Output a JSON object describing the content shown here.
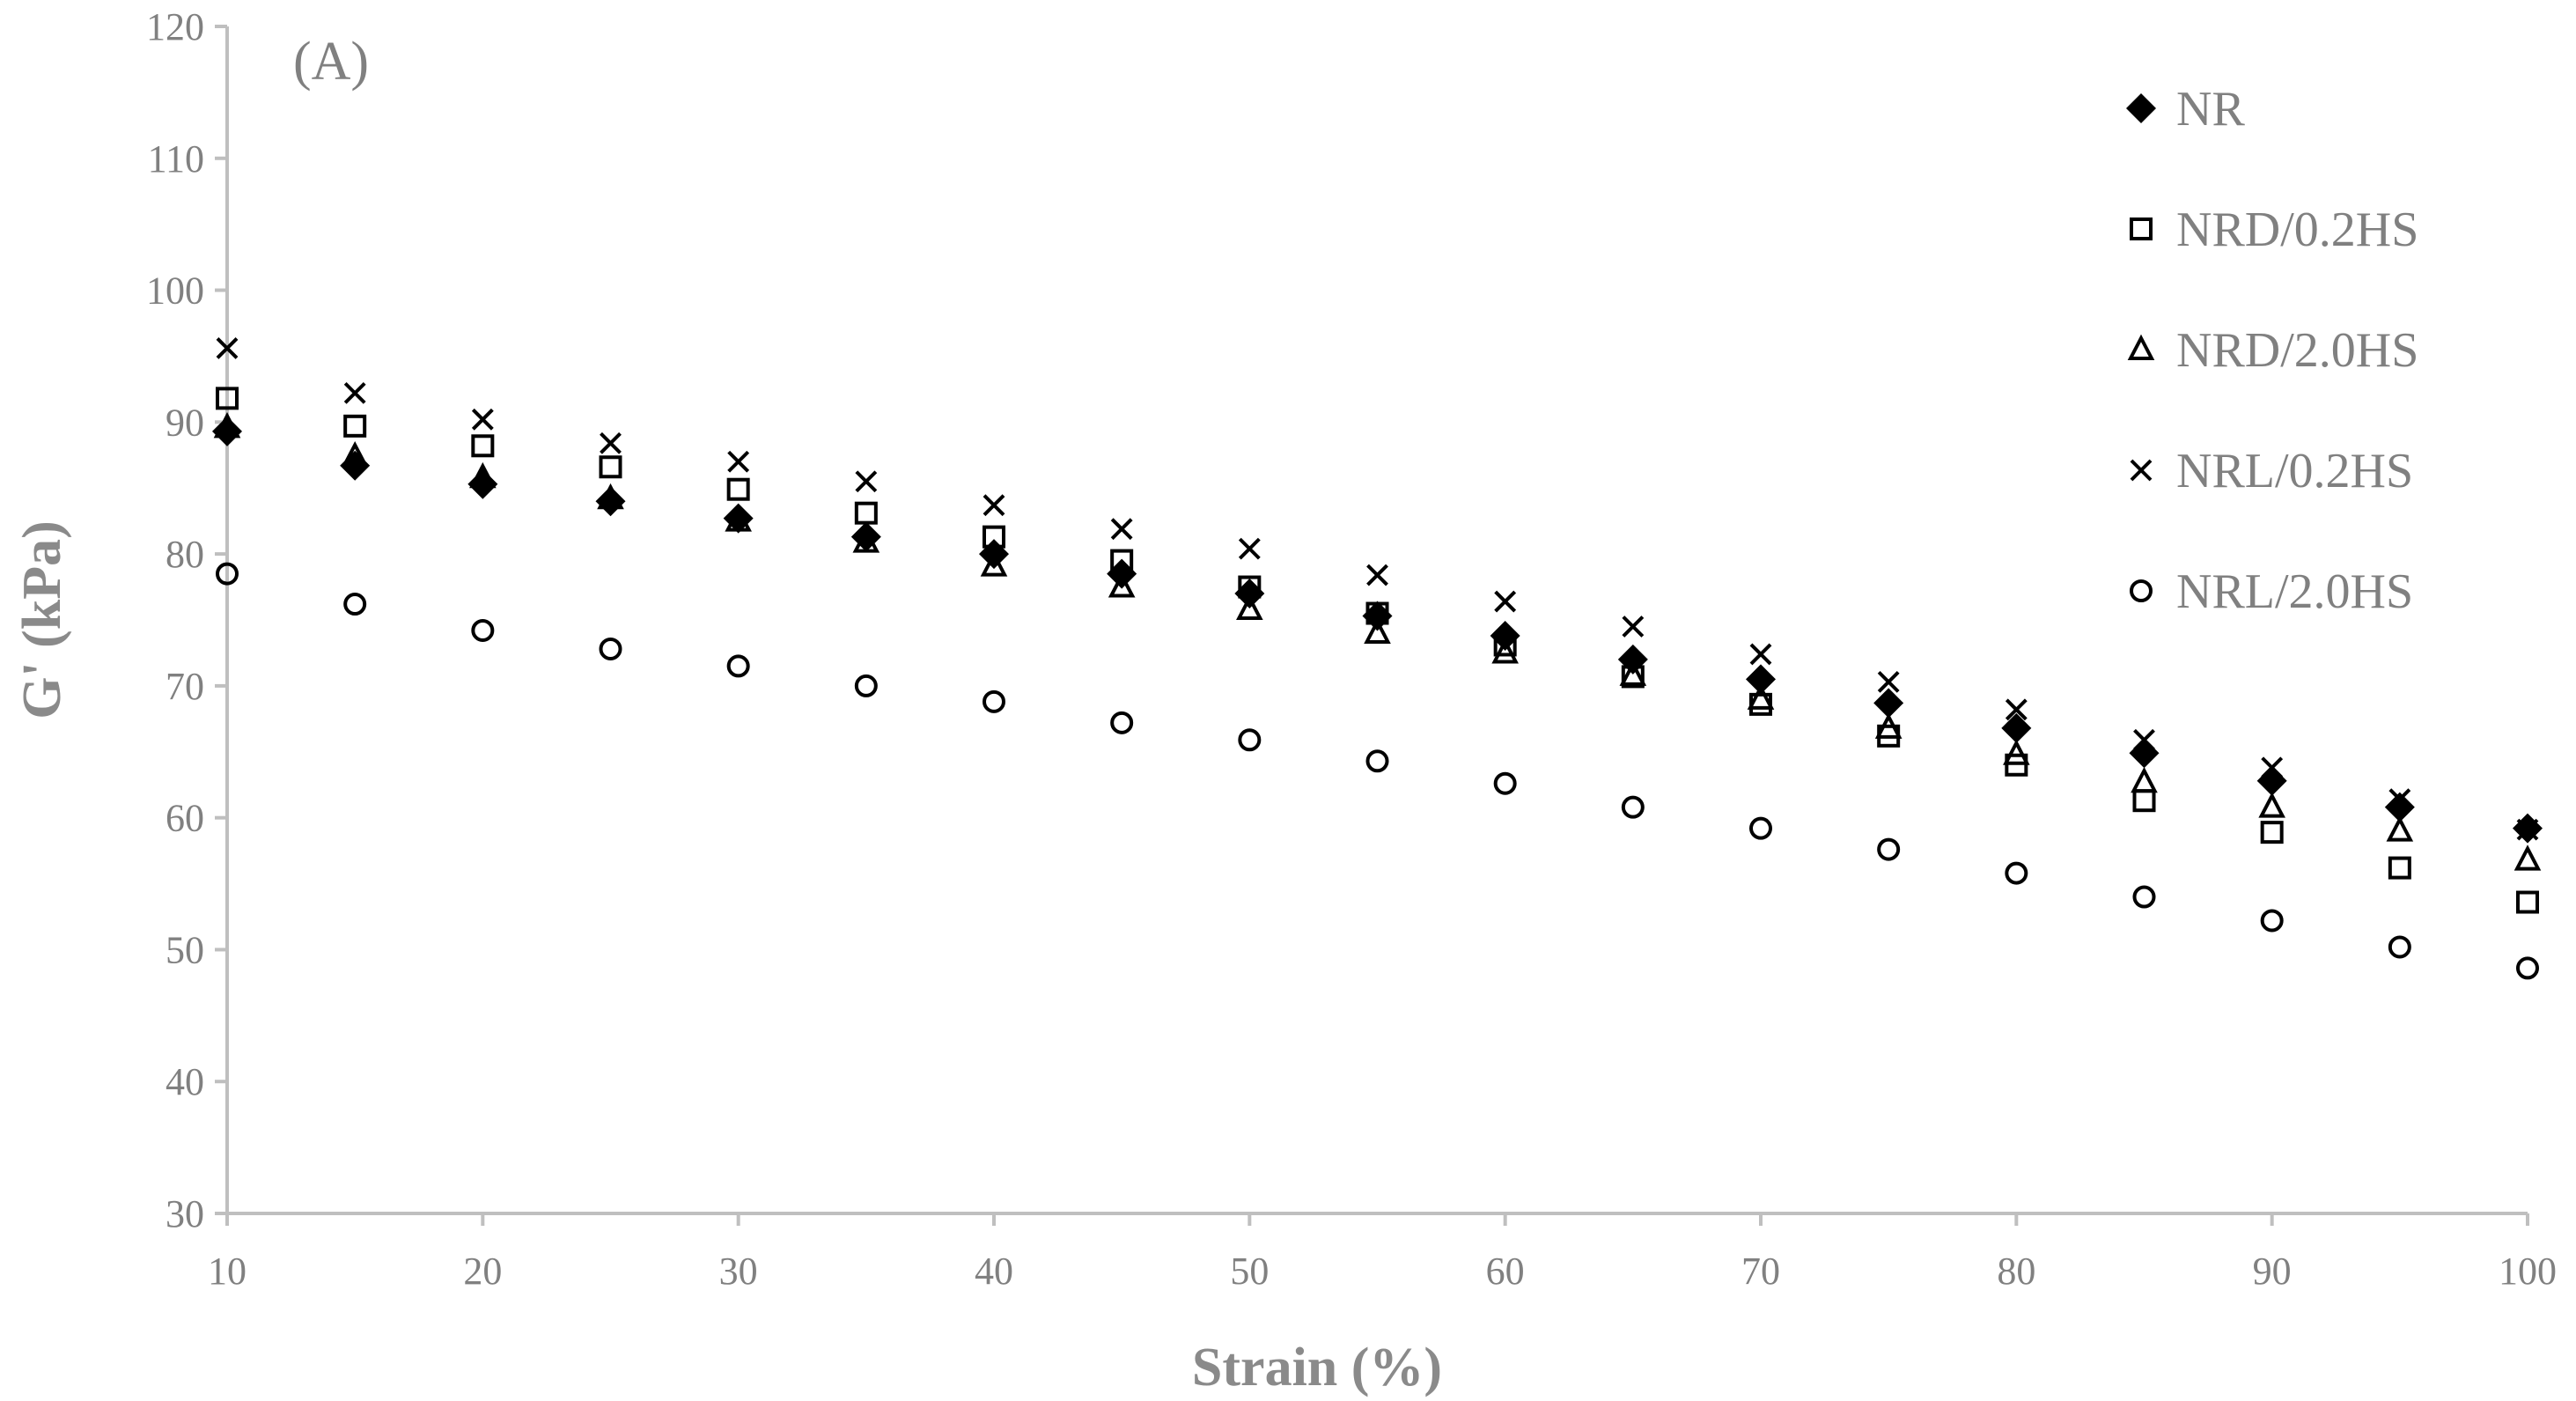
{
  "chart_data": {
    "type": "scatter",
    "panel_label": "(A)",
    "title": "",
    "xlabel": "Strain (%)",
    "ylabel": "G' (kPa)",
    "xlim": [
      10,
      100
    ],
    "ylim": [
      30,
      120
    ],
    "x_ticks": [
      10,
      20,
      30,
      40,
      50,
      60,
      70,
      80,
      90,
      100
    ],
    "y_ticks": [
      30,
      40,
      50,
      60,
      70,
      80,
      90,
      100,
      110,
      120
    ],
    "grid": false,
    "legend_position": "top-right",
    "x": [
      10,
      15,
      20,
      25,
      30,
      35,
      40,
      45,
      50,
      55,
      60,
      65,
      70,
      75,
      80,
      85,
      90,
      95,
      100
    ],
    "series": [
      {
        "name": "NR",
        "marker": "filled-diamond",
        "values": [
          89.3,
          86.7,
          85.3,
          84.0,
          82.7,
          81.3,
          80.0,
          78.5,
          77.0,
          75.3,
          73.8,
          72.0,
          70.5,
          68.7,
          66.8,
          64.9,
          62.8,
          60.8,
          59.2
        ]
      },
      {
        "name": "NRD/0.2HS",
        "marker": "open-square",
        "values": [
          91.8,
          89.7,
          88.2,
          86.6,
          84.9,
          83.1,
          81.3,
          79.5,
          77.5,
          75.5,
          73.1,
          70.7,
          68.6,
          66.2,
          64.0,
          61.3,
          58.9,
          56.2,
          53.6
        ]
      },
      {
        "name": "NRD/2.0HS",
        "marker": "open-triangle",
        "values": [
          89.6,
          87.4,
          85.8,
          84.2,
          82.5,
          80.9,
          79.1,
          77.5,
          75.8,
          74.0,
          72.5,
          70.8,
          69.0,
          66.8,
          64.8,
          62.7,
          60.8,
          59.0,
          56.8
        ]
      },
      {
        "name": "NRL/0.2HS",
        "marker": "x",
        "values": [
          95.6,
          92.2,
          90.2,
          88.4,
          87.0,
          85.5,
          83.7,
          81.9,
          80.4,
          78.4,
          76.4,
          74.5,
          72.4,
          70.3,
          68.2,
          65.9,
          63.8,
          61.4,
          59.1
        ]
      },
      {
        "name": "NRL/2.0HS",
        "marker": "open-circle",
        "values": [
          78.5,
          76.2,
          74.2,
          72.8,
          71.5,
          70.0,
          68.8,
          67.2,
          65.9,
          64.3,
          62.6,
          60.8,
          59.2,
          57.6,
          55.8,
          54.0,
          52.2,
          50.2,
          48.6
        ]
      }
    ]
  }
}
